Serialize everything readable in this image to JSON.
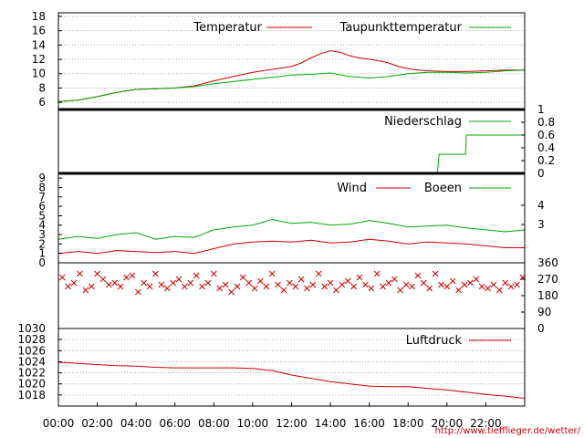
{
  "chart_data": [
    {
      "type": "line",
      "panel": "temperature",
      "ylim": [
        5,
        18.5
      ],
      "yticks": [
        "6",
        "8",
        "10",
        "12",
        "14",
        "16",
        "18"
      ],
      "grid": true,
      "legend_position": "top-right",
      "series": [
        {
          "name": "Temperatur",
          "color": "#cc0000",
          "x": [
            0,
            1,
            2,
            3,
            4,
            5,
            6,
            7,
            8,
            9,
            10,
            11,
            12,
            12.5,
            13,
            13.5,
            14,
            14.5,
            15,
            15.5,
            16,
            16.5,
            17,
            17.5,
            18,
            18.5,
            19,
            20,
            21,
            22,
            23,
            24
          ],
          "y": [
            6.1,
            6.3,
            6.8,
            7.4,
            7.8,
            7.9,
            8.0,
            8.3,
            9.0,
            9.6,
            10.2,
            10.6,
            11.0,
            11.5,
            12.2,
            12.8,
            13.2,
            13.0,
            12.5,
            12.2,
            12.0,
            11.8,
            11.5,
            11.0,
            10.7,
            10.5,
            10.4,
            10.3,
            10.3,
            10.4,
            10.5,
            10.5
          ]
        },
        {
          "name": "Taupunkttemperatur",
          "color": "#00aa00",
          "x": [
            0,
            1,
            2,
            3,
            4,
            5,
            6,
            7,
            8,
            9,
            10,
            11,
            12,
            13,
            14,
            15,
            16,
            17,
            18,
            19,
            20,
            21,
            22,
            23,
            24
          ],
          "y": [
            6.1,
            6.3,
            6.8,
            7.4,
            7.8,
            7.9,
            8.0,
            8.2,
            8.6,
            8.9,
            9.2,
            9.5,
            9.8,
            9.9,
            10.1,
            9.6,
            9.4,
            9.6,
            10.0,
            10.2,
            10.2,
            10.1,
            10.2,
            10.4,
            10.5
          ]
        }
      ]
    },
    {
      "type": "line",
      "panel": "precipitation",
      "ylim": [
        0,
        1
      ],
      "yticks_right": [
        "0",
        "0.2",
        "0.4",
        "0.6",
        "0.8",
        "1"
      ],
      "series": [
        {
          "name": "Niederschlag",
          "color": "#00aa00",
          "x": [
            0,
            19.5,
            19.6,
            20.95,
            21.0,
            24
          ],
          "y": [
            0,
            0,
            0.3,
            0.3,
            0.6,
            0.6
          ]
        }
      ]
    },
    {
      "type": "line",
      "panel": "wind",
      "ylim": [
        0,
        9.5
      ],
      "yticks": [
        "0",
        "1",
        "2",
        "3",
        "4",
        "5",
        "6",
        "7",
        "8",
        "9"
      ],
      "yticks_right": [
        "3",
        "4"
      ],
      "series": [
        {
          "name": "Wind",
          "color": "#cc0000",
          "x": [
            0,
            1,
            2,
            3,
            4,
            5,
            6,
            7,
            8,
            9,
            10,
            11,
            12,
            13,
            14,
            15,
            16,
            17,
            18,
            19,
            20,
            21,
            22,
            23,
            24
          ],
          "y": [
            1.0,
            1.2,
            1.0,
            1.3,
            1.2,
            1.1,
            1.2,
            1.0,
            1.5,
            2.0,
            2.2,
            2.3,
            2.2,
            2.4,
            2.1,
            2.2,
            2.5,
            2.3,
            2.0,
            2.2,
            2.1,
            2.0,
            1.8,
            1.6,
            1.6
          ]
        },
        {
          "name": "Boeen",
          "color": "#00aa00",
          "x": [
            0,
            1,
            2,
            3,
            4,
            5,
            6,
            7,
            8,
            9,
            10,
            11,
            12,
            13,
            14,
            15,
            16,
            17,
            18,
            19,
            20,
            21,
            22,
            23,
            24
          ],
          "y": [
            2.5,
            2.8,
            2.6,
            3.0,
            3.2,
            2.5,
            2.8,
            2.7,
            3.5,
            3.8,
            4.0,
            4.6,
            4.2,
            4.3,
            4.0,
            4.1,
            4.5,
            4.2,
            3.8,
            3.9,
            4.0,
            3.7,
            3.5,
            3.3,
            3.5
          ]
        }
      ]
    },
    {
      "type": "scatter",
      "panel": "wind-direction",
      "ylim": [
        0,
        360
      ],
      "yticks_right": [
        "0",
        "90",
        "180",
        "270",
        "360"
      ],
      "marker": "x",
      "series": [
        {
          "name": "",
          "color": "#cc0000",
          "x": [
            0.2,
            0.5,
            0.8,
            1.1,
            1.4,
            1.7,
            2.0,
            2.3,
            2.6,
            2.9,
            3.2,
            3.5,
            3.8,
            4.1,
            4.4,
            4.7,
            5.0,
            5.3,
            5.6,
            5.9,
            6.2,
            6.5,
            6.8,
            7.1,
            7.4,
            7.7,
            8.0,
            8.3,
            8.6,
            8.9,
            9.2,
            9.5,
            9.8,
            10.1,
            10.4,
            10.7,
            11.0,
            11.3,
            11.6,
            11.9,
            12.2,
            12.5,
            12.8,
            13.1,
            13.4,
            13.7,
            14.0,
            14.3,
            14.6,
            14.9,
            15.2,
            15.5,
            15.8,
            16.1,
            16.4,
            16.7,
            17.0,
            17.3,
            17.6,
            17.9,
            18.2,
            18.5,
            18.8,
            19.1,
            19.4,
            19.7,
            20.0,
            20.3,
            20.6,
            20.9,
            21.2,
            21.5,
            21.8,
            22.1,
            22.4,
            22.7,
            23.0,
            23.3,
            23.6,
            23.9
          ],
          "y": [
            280,
            230,
            250,
            300,
            210,
            230,
            300,
            270,
            240,
            250,
            230,
            280,
            290,
            200,
            250,
            230,
            300,
            240,
            220,
            250,
            270,
            230,
            250,
            290,
            230,
            250,
            300,
            220,
            240,
            200,
            230,
            280,
            250,
            220,
            260,
            230,
            300,
            240,
            210,
            250,
            230,
            270,
            220,
            240,
            300,
            230,
            250,
            210,
            240,
            260,
            230,
            280,
            240,
            220,
            300,
            230,
            250,
            270,
            210,
            240,
            230,
            290,
            250,
            220,
            300,
            240,
            230,
            260,
            210,
            240,
            250,
            270,
            230,
            220,
            240,
            210,
            250,
            230,
            240,
            280
          ]
        }
      ]
    },
    {
      "type": "line",
      "panel": "pressure",
      "ylim": [
        1016,
        1030
      ],
      "yticks": [
        "1018",
        "1020",
        "1022",
        "1024",
        "1026",
        "1028",
        "1030"
      ],
      "grid": true,
      "legend_position": "top-right",
      "series": [
        {
          "name": "Luftdruck",
          "color": "#cc0000",
          "x": [
            0,
            1,
            2,
            3,
            4,
            5,
            6,
            7,
            8,
            9,
            10,
            11,
            12,
            13,
            14,
            15,
            16,
            17,
            18,
            19,
            20,
            21,
            22,
            23,
            24
          ],
          "y": [
            1023.9,
            1023.7,
            1023.5,
            1023.3,
            1023.2,
            1023.0,
            1022.9,
            1022.9,
            1022.9,
            1022.9,
            1022.8,
            1022.4,
            1021.6,
            1021.0,
            1020.4,
            1020.0,
            1019.6,
            1019.5,
            1019.5,
            1019.2,
            1018.9,
            1018.5,
            1018.1,
            1017.8,
            1017.4
          ]
        }
      ]
    }
  ],
  "xaxis": {
    "min": 0,
    "max": 24,
    "ticks": [
      "00:00",
      "02:00",
      "04:00",
      "06:00",
      "08:00",
      "10:00",
      "12:00",
      "14:00",
      "16:00",
      "18:00",
      "20:00",
      "22:00"
    ]
  },
  "footer": {
    "url": "http://www.tiefflieger.de/wetter/"
  },
  "colors": {
    "red": "#cc0000",
    "green": "#00aa00"
  }
}
